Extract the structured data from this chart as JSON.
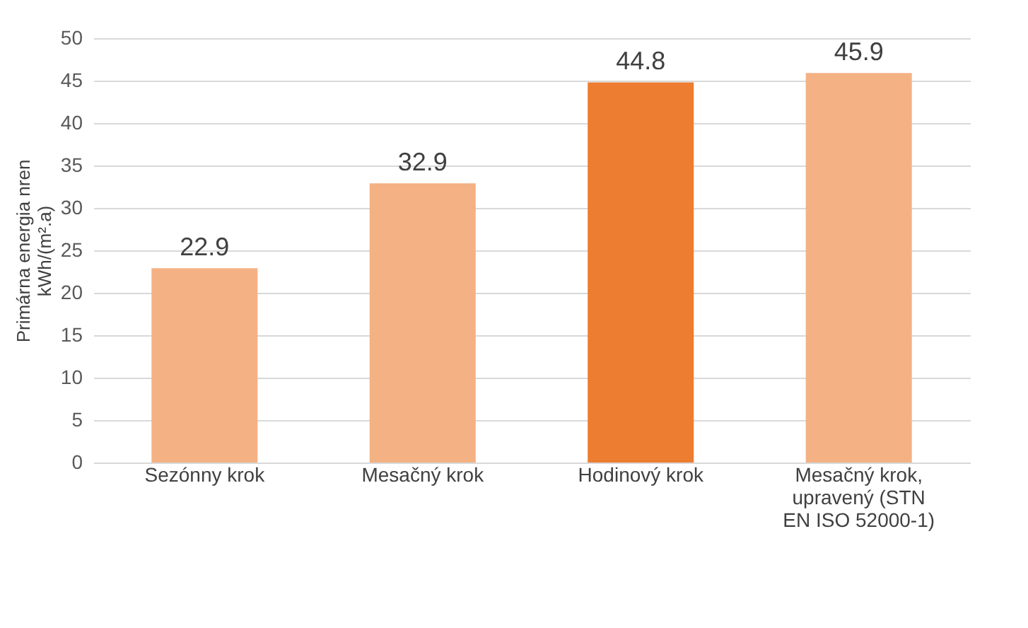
{
  "chart_data": {
    "type": "bar",
    "ylabel": "Primárna energia nren kWh/(m².a)",
    "categories": [
      "Sezónny krok",
      "Mesačný krok",
      "Hodinový krok",
      "Mesačný krok, upravený (STN EN ISO 52000-1)"
    ],
    "values": [
      22.9,
      32.9,
      44.8,
      45.9
    ],
    "colors": [
      "#f4b183",
      "#f4b183",
      "#ed7d31",
      "#f4b183"
    ],
    "ylim": [
      0,
      50
    ],
    "yticks": [
      0,
      5,
      10,
      15,
      20,
      25,
      30,
      35,
      40,
      45,
      50
    ],
    "grid": "y",
    "data_labels": true
  }
}
